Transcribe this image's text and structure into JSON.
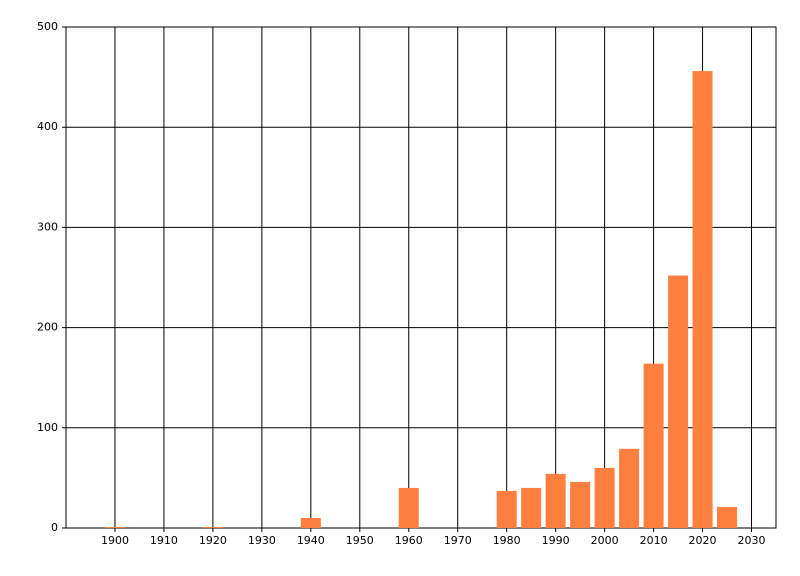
{
  "chart_data": {
    "type": "bar",
    "x": [
      1900,
      1920,
      1940,
      1960,
      1980,
      1985,
      1990,
      1995,
      2000,
      2005,
      2010,
      2015,
      2020,
      2025
    ],
    "values": [
      1,
      1,
      10,
      40,
      37,
      40,
      54,
      46,
      60,
      79,
      164,
      252,
      456,
      21
    ],
    "color": "#ff7f40",
    "xlim": [
      1890,
      2035
    ],
    "xticks": [
      1900,
      1910,
      1920,
      1930,
      1940,
      1950,
      1960,
      1970,
      1980,
      1990,
      2000,
      2010,
      2020,
      2030
    ],
    "ylim": [
      0,
      500
    ],
    "yticks": [
      0,
      100,
      200,
      300,
      400,
      500
    ],
    "grid": true
  }
}
